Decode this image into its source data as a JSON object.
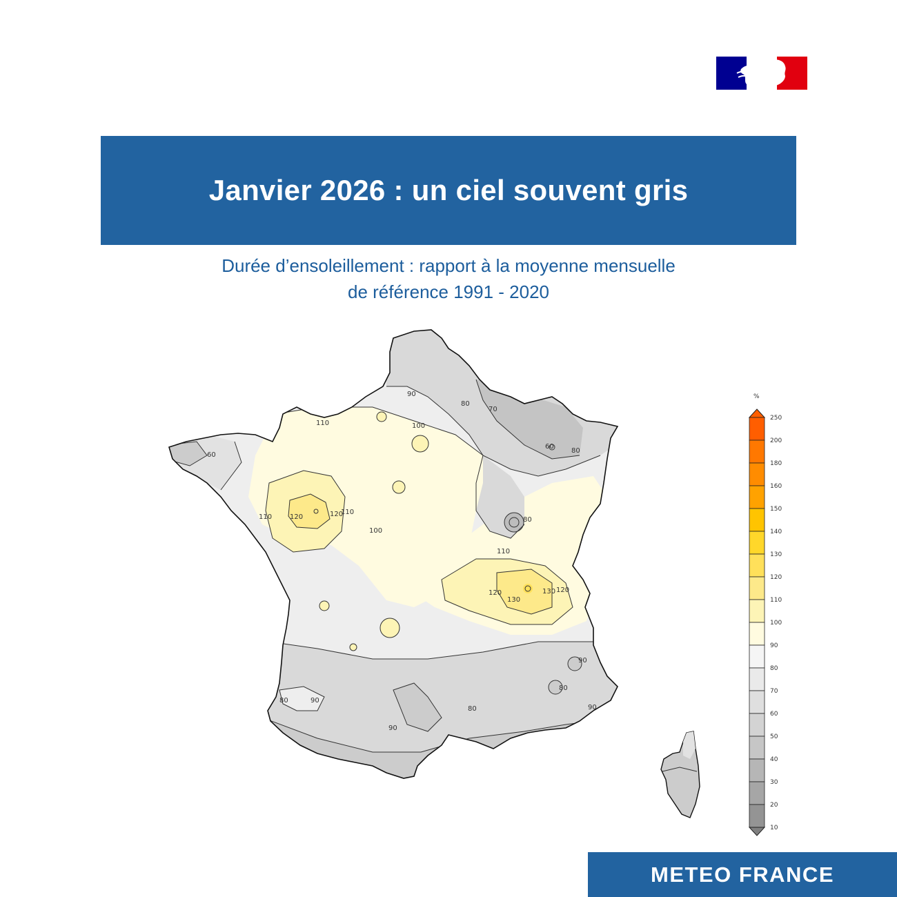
{
  "header": {
    "logo_icon": "republique-francaise-marianne-logo",
    "title": "Janvier 2026 : un ciel souvent gris",
    "subtitle_line1": "Durée d’ensoleillement : rapport à la moyenne mensuelle",
    "subtitle_line2": "de référence 1991 - 2020"
  },
  "map": {
    "contour_labels": [
      "90",
      "80",
      "70",
      "60",
      "80",
      "60",
      "100",
      "110",
      "110",
      "120",
      "120",
      "110",
      "100",
      "80",
      "110",
      "120",
      "130",
      "130",
      "120",
      "90",
      "80",
      "90",
      "80",
      "90",
      "80",
      "90"
    ]
  },
  "legend": {
    "unit": "%",
    "levels": [
      {
        "label": "250",
        "color": "#ff5e00"
      },
      {
        "label": "200",
        "color": "#ff7800"
      },
      {
        "label": "180",
        "color": "#ff8c00"
      },
      {
        "label": "160",
        "color": "#ffa200"
      },
      {
        "label": "150",
        "color": "#ffc400"
      },
      {
        "label": "140",
        "color": "#ffd72a"
      },
      {
        "label": "130",
        "color": "#ffe05a"
      },
      {
        "label": "120",
        "color": "#fde98a"
      },
      {
        "label": "110",
        "color": "#fdf4b6"
      },
      {
        "label": "100",
        "color": "#fffbe0"
      },
      {
        "label": "90",
        "color": "#f5f5f5"
      },
      {
        "label": "80",
        "color": "#eaeaea"
      },
      {
        "label": "70",
        "color": "#dfdfdf"
      },
      {
        "label": "60",
        "color": "#d3d3d3"
      },
      {
        "label": "50",
        "color": "#c6c6c6"
      },
      {
        "label": "40",
        "color": "#b6b6b6"
      },
      {
        "label": "30",
        "color": "#a6a6a6"
      },
      {
        "label": "20",
        "color": "#949494"
      },
      {
        "label": "10",
        "color": "#808080"
      }
    ]
  },
  "footer": {
    "brand": "METEO FRANCE"
  },
  "colors": {
    "banner": "#2263a0",
    "subtitle": "#1c5d9c"
  }
}
